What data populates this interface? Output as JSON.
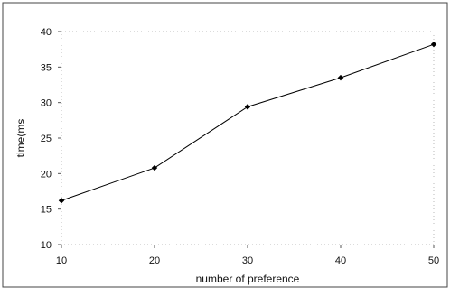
{
  "chart_data": {
    "type": "line",
    "title": "",
    "xlabel": "number of preference",
    "ylabel": "time(ms",
    "x": [
      10,
      20,
      30,
      40,
      50
    ],
    "series": [
      {
        "values": [
          16.2,
          20.8,
          29.4,
          33.5,
          38.2
        ]
      }
    ],
    "xlim": [
      10,
      50
    ],
    "ylim": [
      10,
      40
    ],
    "x_ticks": [
      "10",
      "20",
      "30",
      "40",
      "50"
    ],
    "y_ticks": [
      "10",
      "15",
      "20",
      "25",
      "30",
      "35",
      "40"
    ],
    "grid": false,
    "legend": "none",
    "line_color": "#000000",
    "marker": "diamond"
  }
}
